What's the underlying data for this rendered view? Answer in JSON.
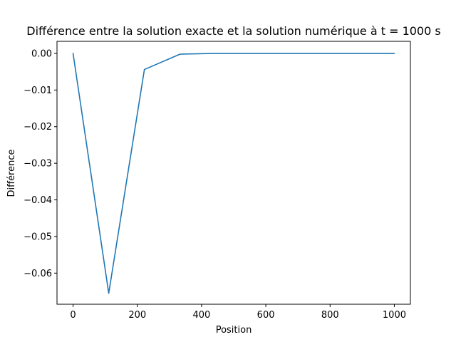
{
  "chart_data": {
    "type": "line",
    "title": "Différence entre la solution exacte et la solution numérique à t = 1000 s",
    "xlabel": "Position",
    "ylabel": "Différence",
    "xlim": [
      -50,
      1050
    ],
    "ylim": [
      -0.0685,
      0.0033
    ],
    "xticks": [
      0,
      200,
      400,
      600,
      800,
      1000
    ],
    "xtick_labels": [
      "0",
      "200",
      "400",
      "600",
      "800",
      "1000"
    ],
    "yticks": [
      0.0,
      -0.01,
      -0.02,
      -0.03,
      -0.04,
      -0.05,
      -0.06
    ],
    "ytick_labels": [
      "0.00",
      "−0.01",
      "−0.02",
      "−0.03",
      "−0.04",
      "−0.05",
      "−0.06"
    ],
    "grid": false,
    "series": [
      {
        "color": "#1f77b4",
        "x": [
          0,
          111,
          222,
          333,
          444,
          556,
          667,
          778,
          889,
          1000
        ],
        "y": [
          0.0,
          -0.0655,
          -0.0044,
          -0.0002,
          0.0,
          0.0,
          0.0,
          0.0,
          0.0,
          0.0
        ]
      }
    ]
  }
}
